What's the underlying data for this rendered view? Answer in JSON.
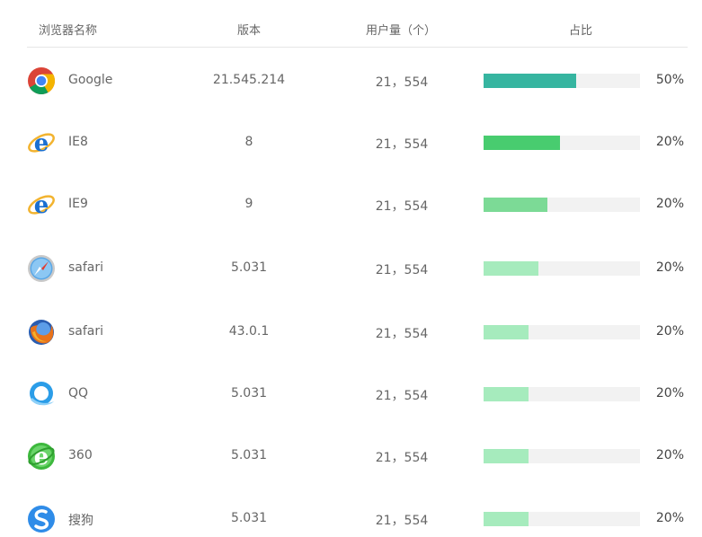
{
  "header": {
    "name": "浏览器名称",
    "version": "版本",
    "users": "用户量（个）",
    "share": "占比"
  },
  "rows": [
    {
      "icon": "chrome-icon",
      "name": "Google",
      "version": "21.545.214",
      "users": "21，554",
      "percent": "50%",
      "bar_fraction": 0.59,
      "bar_color": "#36b5a0"
    },
    {
      "icon": "ie-icon",
      "name": "IE8",
      "version": "8",
      "users": "21，554",
      "percent": "20%",
      "bar_fraction": 0.49,
      "bar_color": "#48cc6f"
    },
    {
      "icon": "ie-icon",
      "name": "IE9",
      "version": "9",
      "users": "21，554",
      "percent": "20%",
      "bar_fraction": 0.41,
      "bar_color": "#7cda96"
    },
    {
      "icon": "safari-icon",
      "name": "safari",
      "version": "5.031",
      "users": "21，554",
      "percent": "20%",
      "bar_fraction": 0.35,
      "bar_color": "#a6ebbd"
    },
    {
      "icon": "firefox-icon",
      "name": "safari",
      "version": "43.0.1",
      "users": "21，554",
      "percent": "20%",
      "bar_fraction": 0.29,
      "bar_color": "#a6ebbd"
    },
    {
      "icon": "qq-browser-icon",
      "name": "QQ",
      "version": "5.031",
      "users": "21，554",
      "percent": "20%",
      "bar_fraction": 0.29,
      "bar_color": "#a6ebbd"
    },
    {
      "icon": "360-browser-icon",
      "name": "360",
      "version": "5.031",
      "users": "21，554",
      "percent": "20%",
      "bar_fraction": 0.29,
      "bar_color": "#a6ebbd"
    },
    {
      "icon": "sogou-icon",
      "name": "搜狗",
      "version": "5.031",
      "users": "21，554",
      "percent": "20%",
      "bar_fraction": 0.29,
      "bar_color": "#a6ebbd"
    }
  ]
}
